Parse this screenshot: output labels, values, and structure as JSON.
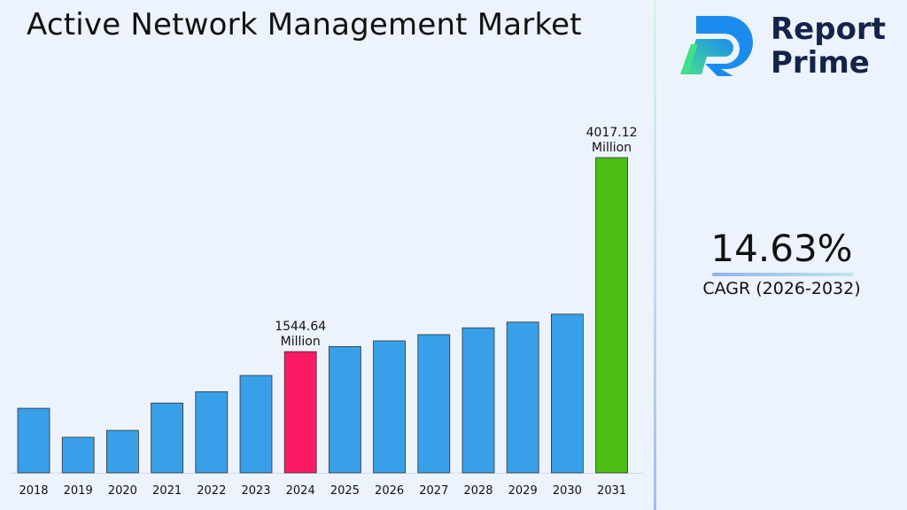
{
  "title": "Active Network Management Market",
  "brand": {
    "line1": "Report",
    "line2": "Prime",
    "colors": {
      "dark": "#14234a",
      "blue": "#1a8cf0",
      "green": "#3ee08a"
    }
  },
  "cagr": {
    "value": "14.63%",
    "label": "CAGR (2026-2032)"
  },
  "chart_data": {
    "type": "bar",
    "categories": [
      "2018",
      "2019",
      "2020",
      "2021",
      "2022",
      "2023",
      "2024",
      "2025",
      "2026",
      "2027",
      "2028",
      "2029",
      "2030",
      "2031"
    ],
    "values": [
      823,
      453,
      541,
      889,
      1034,
      1241,
      1544.64,
      1609,
      1682,
      1761,
      1848,
      1921,
      2022,
      4017.12
    ],
    "bar_colors": [
      "#38a0e8",
      "#38a0e8",
      "#38a0e8",
      "#38a0e8",
      "#38a0e8",
      "#38a0e8",
      "#fc1a64",
      "#38a0e8",
      "#38a0e8",
      "#38a0e8",
      "#38a0e8",
      "#38a0e8",
      "#38a0e8",
      "#4cbe14"
    ],
    "annotations": [
      {
        "index": 6,
        "line1": "1544.64",
        "line2": "Million"
      },
      {
        "index": 13,
        "line1": "4017.12",
        "line2": "Million"
      }
    ],
    "xlabel": "",
    "ylabel": "",
    "grid": false,
    "legend": "none"
  }
}
